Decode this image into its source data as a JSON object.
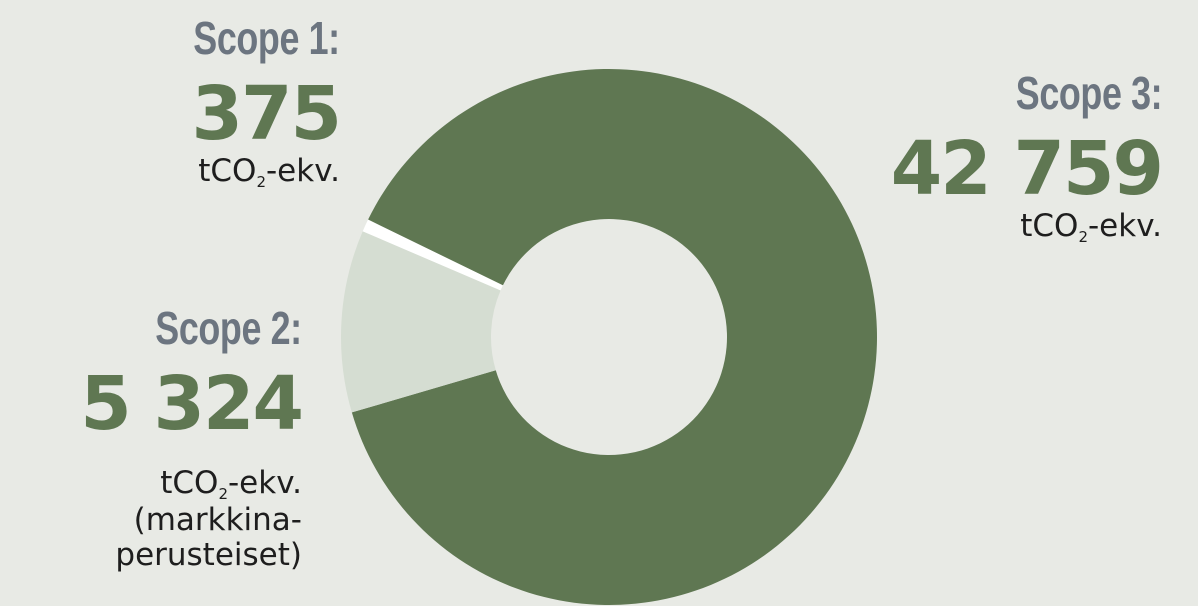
{
  "colors": {
    "background": "#e8eae5",
    "title": "#6c7580",
    "value": "#5f7752",
    "unit_text": "#1e1e1e",
    "slice_scope1": "#ffffff",
    "slice_scope2": "#d5ddd2",
    "slice_scope3": "#5f7752"
  },
  "unit_main": "tCO",
  "unit_sub": "2",
  "unit_tail": "-ekv.",
  "scope1": {
    "title": "Scope 1:",
    "value": "375"
  },
  "scope2": {
    "title": "Scope 2:",
    "value": "5 324",
    "note_line1": "(markkina-",
    "note_line2": "perusteiset)"
  },
  "scope3": {
    "title": "Scope 3:",
    "value": "42 759"
  },
  "chart_data": {
    "type": "pie",
    "title": "",
    "labels": [
      "Scope 1:",
      "Scope 2:",
      "Scope 3:"
    ],
    "values": [
      375,
      5324,
      42759
    ],
    "unit": "tCO2-ekv.",
    "donut": true,
    "start_slice": "Scope 1:",
    "legend": "none"
  }
}
